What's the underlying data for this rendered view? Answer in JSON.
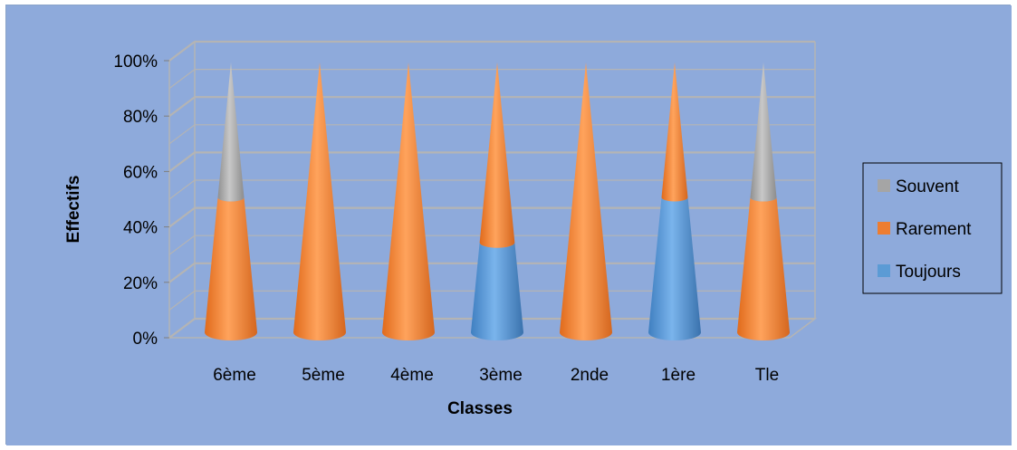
{
  "chart_data": {
    "type": "bar",
    "style": "3d-cone-stacked-100",
    "title": "",
    "xlabel": "Classes",
    "ylabel": "Effectifs",
    "ylim": [
      0,
      100
    ],
    "yticks": [
      "0%",
      "20%",
      "40%",
      "60%",
      "80%",
      "100%"
    ],
    "grid": true,
    "legend_position": "right",
    "categories": [
      "6ème",
      "5ème",
      "4ème",
      "3ème",
      "2nde",
      "1ère",
      "Tle"
    ],
    "series": [
      {
        "name": "Toujours",
        "values": [
          0,
          0,
          0,
          33.3,
          0,
          50,
          0
        ]
      },
      {
        "name": "Rarement",
        "values": [
          50,
          100,
          100,
          66.7,
          100,
          50,
          50
        ]
      },
      {
        "name": "Souvent",
        "values": [
          50,
          0,
          0,
          0,
          0,
          0,
          50
        ]
      }
    ],
    "legend_order": [
      "Souvent",
      "Rarement",
      "Toujours"
    ],
    "colors": {
      "background": "#8eaadb",
      "Toujours": "#5b9bd5",
      "Rarement": "#ed7d31",
      "Souvent": "#a5a5a5",
      "gridline": "#b4b4b4"
    }
  }
}
